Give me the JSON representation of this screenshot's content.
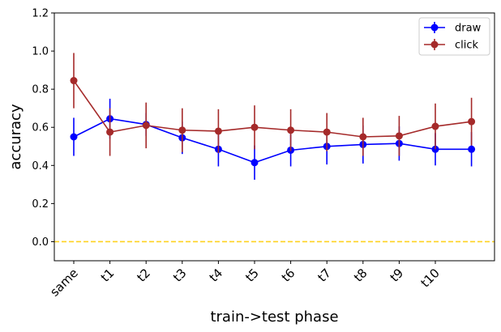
{
  "chart_data": {
    "type": "line",
    "title": "",
    "xlabel": "train->test phase",
    "ylabel": "accuracy",
    "categories": [
      "same",
      "t1",
      "t2",
      "t3",
      "t4",
      "t5",
      "t6",
      "t7",
      "t8",
      "t9",
      "t10",
      ""
    ],
    "xtick_labels": [
      "same",
      "t1",
      "t2",
      "t3",
      "t4",
      "t5",
      "t6",
      "t7",
      "t8",
      "t9",
      "t10"
    ],
    "yticks": [
      "0.0",
      "0.2",
      "0.4",
      "0.6",
      "0.8",
      "1.0",
      "1.2"
    ],
    "ylim": [
      -0.1,
      1.2
    ],
    "grid": false,
    "legend_position": "top-right",
    "reference_line": {
      "y": 0.0,
      "style": "dashed",
      "color": "#FFD21F"
    },
    "series": [
      {
        "name": "draw",
        "color": "#0000FF",
        "values": [
          0.55,
          0.645,
          0.615,
          0.545,
          0.485,
          0.415,
          0.48,
          0.5,
          0.51,
          0.515,
          0.485,
          0.485
        ],
        "errors": [
          0.1,
          0.105,
          0.06,
          0.085,
          0.09,
          0.09,
          0.085,
          0.095,
          0.1,
          0.09,
          0.085,
          0.09
        ]
      },
      {
        "name": "click",
        "color": "#A52A2A",
        "values": [
          0.845,
          0.575,
          0.61,
          0.585,
          0.58,
          0.6,
          0.585,
          0.575,
          0.55,
          0.555,
          0.605,
          0.63
        ],
        "errors": [
          0.145,
          0.125,
          0.12,
          0.115,
          0.115,
          0.115,
          0.11,
          0.1,
          0.1,
          0.105,
          0.12,
          0.125
        ]
      }
    ]
  }
}
